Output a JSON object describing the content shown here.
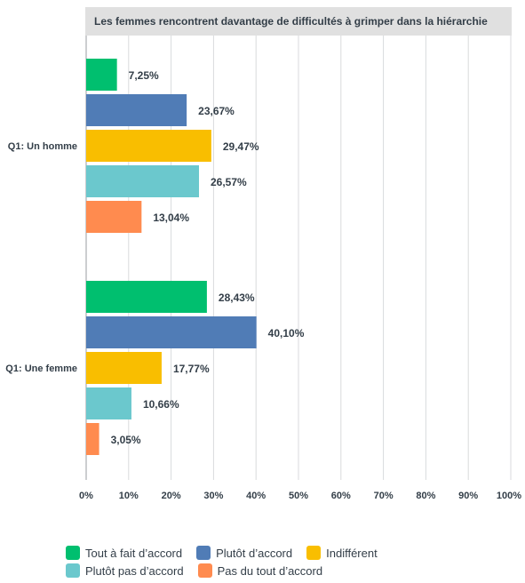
{
  "chart_data": {
    "type": "bar",
    "orientation": "horizontal",
    "title": "Les femmes rencontrent davantage de difficultés à grimper dans la hiérarchie",
    "categories": [
      "Q1: Un homme",
      "Q1: Une femme"
    ],
    "series": [
      {
        "name": "Tout à fait d’accord",
        "color": "#00bf6f",
        "values": [
          7.25,
          28.43
        ],
        "labels": [
          "7,25%",
          "28,43%"
        ]
      },
      {
        "name": "Plutôt d’accord",
        "color": "#507cb6",
        "values": [
          23.67,
          40.1
        ],
        "labels": [
          "23,67%",
          "40,10%"
        ]
      },
      {
        "name": "Indifférent",
        "color": "#f9be00",
        "values": [
          29.47,
          17.77
        ],
        "labels": [
          "29,47%",
          "17,77%"
        ]
      },
      {
        "name": "Plutôt pas d’accord",
        "color": "#6bc8cd",
        "values": [
          26.57,
          10.66
        ],
        "labels": [
          "26,57%",
          "10,66%"
        ]
      },
      {
        "name": "Pas du tout d’accord",
        "color": "#ff8b4f",
        "values": [
          13.04,
          3.05
        ],
        "labels": [
          "13,04%",
          "3,05%"
        ]
      }
    ],
    "xlim": [
      0,
      100
    ],
    "x_ticks": [
      "0%",
      "10%",
      "20%",
      "30%",
      "40%",
      "50%",
      "60%",
      "70%",
      "80%",
      "90%",
      "100%"
    ],
    "grid": true,
    "legend_position": "bottom",
    "colors": {
      "title_bg": "#e0e0e0",
      "grid": "#d8dadc",
      "text": "#333e48"
    }
  }
}
